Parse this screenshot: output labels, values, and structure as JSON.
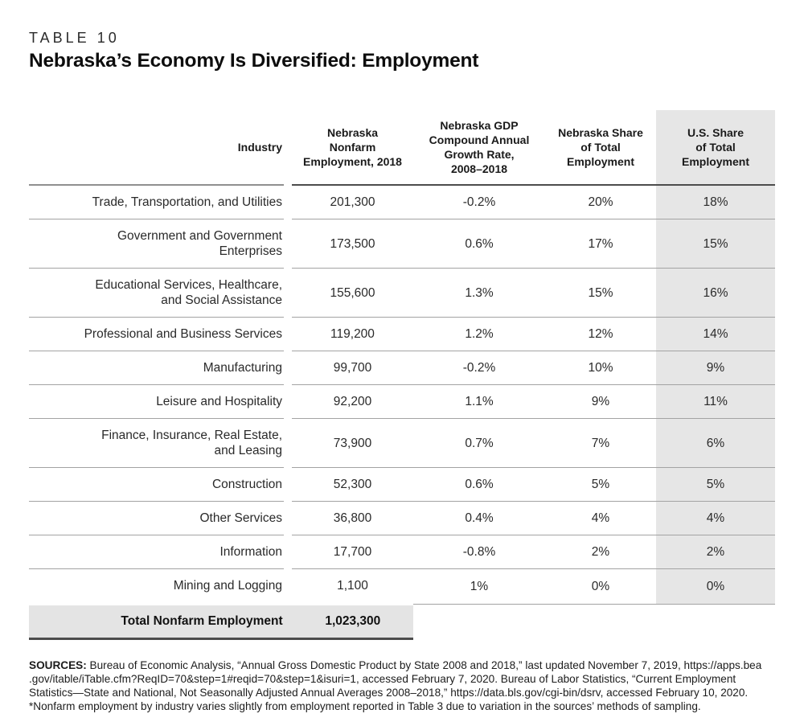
{
  "page": {
    "eyebrow": "TABLE 10",
    "title": "Nebraska’s Economy Is Diversified: Employment"
  },
  "table": {
    "columns": [
      {
        "key": "industry",
        "label": "Industry"
      },
      {
        "key": "employment",
        "label": "Nebraska\nNonfarm\nEmployment, 2018"
      },
      {
        "key": "growth",
        "label": "Nebraska GDP\nCompound Annual\nGrowth Rate,\n2008–2018"
      },
      {
        "key": "ne_share",
        "label": "Nebraska Share\nof Total\nEmployment"
      },
      {
        "key": "us_share",
        "label": "U.S. Share\nof Total\nEmployment"
      }
    ],
    "rows": [
      {
        "industry": "Trade, Transportation, and Utilities",
        "employment": "201,300",
        "growth": "-0.2%",
        "ne_share": "20%",
        "us_share": "18%"
      },
      {
        "industry": "Government and Government\nEnterprises",
        "employment": "173,500",
        "growth": "0.6%",
        "ne_share": "17%",
        "us_share": "15%"
      },
      {
        "industry": "Educational Services, Healthcare,\nand Social Assistance",
        "employment": "155,600",
        "growth": "1.3%",
        "ne_share": "15%",
        "us_share": "16%"
      },
      {
        "industry": "Professional and Business Services",
        "employment": "119,200",
        "growth": "1.2%",
        "ne_share": "12%",
        "us_share": "14%"
      },
      {
        "industry": "Manufacturing",
        "employment": "99,700",
        "growth": "-0.2%",
        "ne_share": "10%",
        "us_share": "9%"
      },
      {
        "industry": "Leisure and Hospitality",
        "employment": "92,200",
        "growth": "1.1%",
        "ne_share": "9%",
        "us_share": "11%"
      },
      {
        "industry": "Finance, Insurance, Real Estate,\nand Leasing",
        "employment": "73,900",
        "growth": "0.7%",
        "ne_share": "7%",
        "us_share": "6%"
      },
      {
        "industry": "Construction",
        "employment": "52,300",
        "growth": "0.6%",
        "ne_share": "5%",
        "us_share": "5%"
      },
      {
        "industry": "Other Services",
        "employment": "36,800",
        "growth": "0.4%",
        "ne_share": "4%",
        "us_share": "4%"
      },
      {
        "industry": "Information",
        "employment": "17,700",
        "growth": "-0.8%",
        "ne_share": "2%",
        "us_share": "2%"
      },
      {
        "industry": "Mining and Logging",
        "employment": "1,100",
        "growth": "1%",
        "ne_share": "0%",
        "us_share": "0%"
      }
    ],
    "total": {
      "label": "Total Nonfarm Employment",
      "value": "1,023,300"
    }
  },
  "chart_data": {
    "type": "table",
    "title": "Nebraska’s Economy Is Diversified: Employment",
    "categories": [
      "Trade, Transportation, and Utilities",
      "Government and Government Enterprises",
      "Educational Services, Healthcare, and Social Assistance",
      "Professional and Business Services",
      "Manufacturing",
      "Leisure and Hospitality",
      "Finance, Insurance, Real Estate, and Leasing",
      "Construction",
      "Other Services",
      "Information",
      "Mining and Logging"
    ],
    "series": [
      {
        "name": "Nebraska Nonfarm Employment, 2018",
        "values": [
          201300,
          173500,
          155600,
          119200,
          99700,
          92200,
          73900,
          52300,
          36800,
          17700,
          1100
        ]
      },
      {
        "name": "Nebraska GDP Compound Annual Growth Rate, 2008–2018 (%)",
        "values": [
          -0.2,
          0.6,
          1.3,
          1.2,
          -0.2,
          1.1,
          0.7,
          0.6,
          0.4,
          -0.8,
          1
        ]
      },
      {
        "name": "Nebraska Share of Total Employment (%)",
        "values": [
          20,
          17,
          15,
          12,
          10,
          9,
          7,
          5,
          4,
          2,
          0
        ]
      },
      {
        "name": "U.S. Share of Total Employment (%)",
        "values": [
          18,
          15,
          16,
          14,
          9,
          11,
          6,
          5,
          4,
          2,
          0
        ]
      }
    ],
    "total_nonfarm_employment": 1023300
  },
  "footer": {
    "label": "SOURCES:",
    "line1": " Bureau of Economic Analysis, “Annual Gross Domestic Product by State 2008 and 2018,” last updated November 7, 2019, https://apps.bea",
    "line2": ".gov/itable/iTable.cfm?ReqID=70&step=1#reqid=70&step=1&isuri=1, accessed February 7, 2020. Bureau of Labor Statistics, “Current Employment",
    "line3": "Statistics—State and National, Not Seasonally Adjusted Annual Averages 2008–2018,” https://data.bls.gov/cgi-bin/dsrv, accessed February 10, 2020.",
    "note": "*Nonfarm employment by industry varies slightly from employment reported in Table 3 due to variation in the sources’ methods of sampling."
  },
  "colors": {
    "shaded_column": "#e6e6e6",
    "total_row_fill": "#e4e4e4",
    "row_separator": "#a3a3a3",
    "header_rule_dark": "#4c4c4c",
    "header_rule_light": "#8f8f8f",
    "text": "#1f1f1f"
  }
}
